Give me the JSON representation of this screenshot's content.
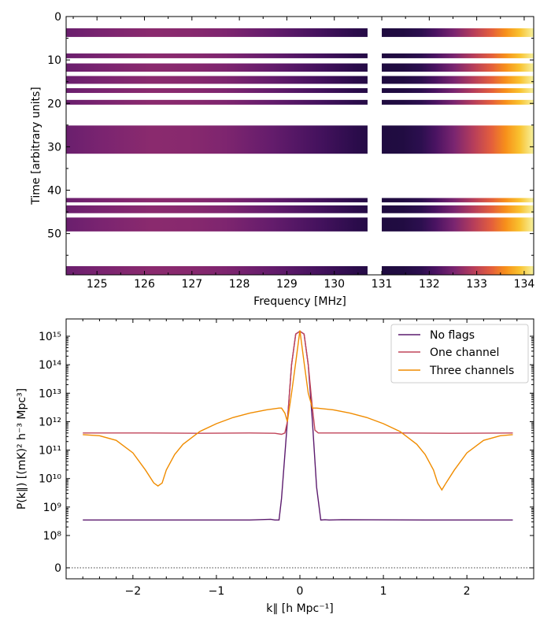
{
  "chart_data": [
    {
      "type": "heatmap",
      "xlabel": "Frequency [MHz]",
      "ylabel": "Time [arbitrary units]",
      "xlim": [
        124.35,
        134.2
      ],
      "ylim": [
        59.5,
        0
      ],
      "xticks": [
        125,
        126,
        127,
        128,
        129,
        130,
        131,
        132,
        133,
        134
      ],
      "yticks": [
        0,
        10,
        20,
        30,
        40,
        50
      ],
      "colormap": "inferno",
      "flagged_channels": {
        "start": 130.7,
        "end": 131.0
      },
      "rows": [
        {
          "start": 2.7,
          "end": 4.7
        },
        {
          "start": 8.5,
          "end": 9.6
        },
        {
          "start": 10.8,
          "end": 12.7
        },
        {
          "start": 13.7,
          "end": 15.5
        },
        {
          "start": 16.5,
          "end": 17.6
        },
        {
          "start": 19.2,
          "end": 20.3
        },
        {
          "start": 25.1,
          "end": 31.6
        },
        {
          "start": 41.8,
          "end": 42.8
        },
        {
          "start": 43.5,
          "end": 45.3
        },
        {
          "start": 46.3,
          "end": 49.5
        },
        {
          "start": 57.5,
          "end": 59.5
        }
      ]
    },
    {
      "type": "line",
      "xlabel": "k∥ [h Mpc⁻¹]",
      "ylabel": "P(k∥) [(mK)² h⁻³ Mpc³]",
      "xlim": [
        -2.8,
        2.8
      ],
      "yscale": "symlog",
      "xticks": [
        -2,
        -1,
        0,
        1,
        2
      ],
      "ytick_labels": [
        "0",
        "10⁸",
        "10⁹",
        "10¹⁰",
        "10¹¹",
        "10¹²",
        "10¹³",
        "10¹⁴",
        "10¹⁵"
      ],
      "zero_line": "dotted",
      "legend_location": "top-right",
      "series": [
        {
          "name": "No flags",
          "color": "#5c1b6e",
          "x": [
            -2.6,
            -1.5,
            -0.6,
            -0.35,
            -0.3,
            -0.25,
            -0.22,
            -0.15,
            -0.1,
            -0.05,
            0.0,
            0.05,
            0.1,
            0.15,
            0.2,
            0.25,
            0.3,
            0.35,
            0.5,
            1.5,
            2.55
          ],
          "y": [
            350000000.0,
            350000000.0,
            350000000.0,
            370000000.0,
            350000000.0,
            350000000.0,
            2000000000.0,
            1000000000000.0,
            100000000000000.0,
            1200000000000000.0,
            1500000000000000.0,
            1200000000000000.0,
            100000000000000.0,
            1000000000000.0,
            5000000000.0,
            350000000.0,
            360000000.0,
            350000000.0,
            360000000.0,
            350000000.0,
            350000000.0
          ]
        },
        {
          "name": "One channel",
          "color": "#c1455a",
          "x": [
            -2.6,
            -1.8,
            -1.2,
            -0.6,
            -0.3,
            -0.22,
            -0.18,
            -0.15,
            -0.1,
            -0.05,
            0.0,
            0.05,
            0.1,
            0.15,
            0.18,
            0.22,
            0.5,
            1.2,
            1.8,
            2.55
          ],
          "y": [
            400000000000.0,
            400000000000.0,
            390000000000.0,
            400000000000.0,
            390000000000.0,
            360000000000.0,
            400000000000.0,
            1000000000000.0,
            100000000000000.0,
            1200000000000000.0,
            1500000000000000.0,
            1200000000000000.0,
            100000000000000.0,
            3000000000000.0,
            500000000000.0,
            400000000000.0,
            400000000000.0,
            400000000000.0,
            390000000000.0,
            400000000000.0
          ]
        },
        {
          "name": "Three channels",
          "color": "#f08c00",
          "x": [
            -2.6,
            -2.4,
            -2.2,
            -2.0,
            -1.85,
            -1.75,
            -1.7,
            -1.65,
            -1.6,
            -1.5,
            -1.4,
            -1.2,
            -1.0,
            -0.8,
            -0.6,
            -0.4,
            -0.25,
            -0.22,
            -0.18,
            -0.15,
            -0.1,
            -0.05,
            0.0,
            0.05,
            0.1,
            0.15,
            0.2,
            0.4,
            0.6,
            0.8,
            1.0,
            1.2,
            1.4,
            1.5,
            1.6,
            1.65,
            1.7,
            1.75,
            1.85,
            2.0,
            2.2,
            2.4,
            2.55
          ],
          "y": [
            350000000000.0,
            320000000000.0,
            220000000000.0,
            80000000000.0,
            20000000000.0,
            7000000000.0,
            5500000000.0,
            7000000000.0,
            20000000000.0,
            70000000000.0,
            160000000000.0,
            450000000000.0,
            850000000000.0,
            1400000000000.0,
            2000000000000.0,
            2600000000000.0,
            3000000000000.0,
            3000000000000.0,
            2000000000000.0,
            1000000000000.0,
            10000000000000.0,
            120000000000000.0,
            1600000000000000.0,
            120000000000000.0,
            10000000000000.0,
            3000000000000.0,
            3000000000000.0,
            2600000000000.0,
            2000000000000.0,
            1400000000000.0,
            850000000000.0,
            450000000000.0,
            160000000000.0,
            70000000000.0,
            20000000000.0,
            7000000000.0,
            4000000000.0,
            7000000000.0,
            20000000000.0,
            80000000000.0,
            220000000000.0,
            320000000000.0,
            350000000000.0
          ]
        }
      ]
    }
  ]
}
